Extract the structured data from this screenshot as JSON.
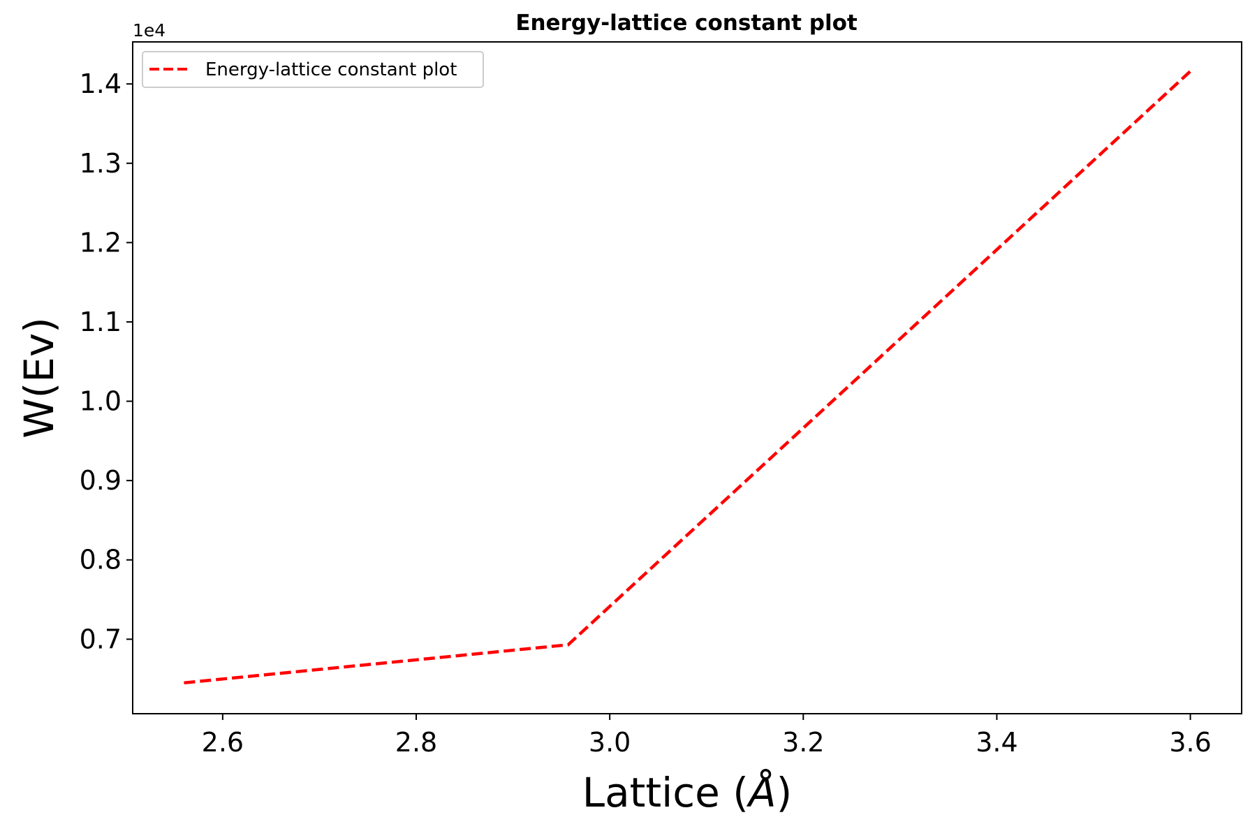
{
  "chart_data": {
    "type": "line",
    "title": "Energy-lattice constant plot",
    "xlabel_main": "Lattice (",
    "xlabel_symbol": "Å",
    "xlabel_close": ")",
    "ylabel": "W(Ev)",
    "y_offset_label": "1e4",
    "x_ticks": [
      2.6,
      2.8,
      3.0,
      3.2,
      3.4,
      3.6
    ],
    "x_tick_labels": [
      "2.6",
      "2.8",
      "3.0",
      "3.2",
      "3.4",
      "3.6"
    ],
    "y_ticks": [
      0.7,
      0.8,
      0.9,
      1.0,
      1.1,
      1.2,
      1.3,
      1.4
    ],
    "y_tick_labels": [
      "0.7",
      "0.8",
      "0.9",
      "1.0",
      "1.1",
      "1.2",
      "1.3",
      "1.4"
    ],
    "xlim": [
      2.507,
      3.653
    ],
    "ylim": [
      0.6061,
      1.453
    ],
    "grid": false,
    "legend_position": "upper-left",
    "series": [
      {
        "name": "Energy-lattice constant plot",
        "color": "#ff0000",
        "line_style": "dashed",
        "x": [
          2.56,
          2.957,
          3.6
        ],
        "y": [
          0.645,
          0.693,
          1.416
        ]
      }
    ]
  }
}
